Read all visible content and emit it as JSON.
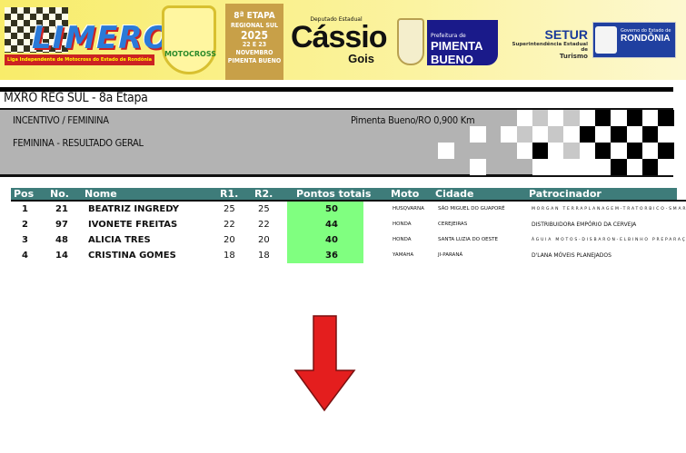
{
  "banner": {
    "limero_logo": "LIMERO",
    "limero_tagline": "Liga Independente de Motocross do Estado de Rondônia",
    "motocross_badge": "MOTOCROSS",
    "etapa_lines": [
      "8ª ETAPA",
      "REGIONAL SUL",
      "2025",
      "22 E 23 NOVEMBRO",
      "PIMENTA BUENO"
    ],
    "deputado_label": "Deputado Estadual",
    "deputado_name": "Cássio",
    "deputado_surname": "Gois",
    "prefeitura_label": "Prefeitura de",
    "prefeitura_name": "PIMENTA BUENO",
    "setur_title": "SETUR",
    "setur_sub": "Superintendência Estadual de",
    "setur_sub2": "Turismo",
    "governo_label": "Governo do Estado de",
    "governo_name": "RONDÔNIA"
  },
  "event_title": "MXRO REG SUL - 8a Etapa",
  "info": {
    "category": "INCENTIVO / FEMININA",
    "location": "Pimenta Bueno/RO 0,900 Km",
    "subtitle": "FEMININA - RESULTADO GERAL"
  },
  "table": {
    "headers": [
      "Pos",
      "No.",
      "Nome",
      "R1.",
      "R2.",
      "Pontos totais",
      "Moto",
      "Cidade",
      "Patrocinador"
    ],
    "rows": [
      {
        "pos": "1",
        "no": "21",
        "nome": "BEATRIZ INGREDY",
        "r1": "25",
        "r2": "25",
        "total": "50",
        "moto": "HUSQVARNA",
        "cidade": "SÃO MIGUEL DO GUAPORÉ",
        "patrocinador": "MORGAN TERRAPLANAGEM-TRATORBICO-SMART GU"
      },
      {
        "pos": "2",
        "no": "97",
        "nome": "IVONETE FREITAS",
        "r1": "22",
        "r2": "22",
        "total": "44",
        "moto": "HONDA",
        "cidade": "CEREJEIRAS",
        "patrocinador": "DISTRIBUIDORA EMPÓRIO DA CERVEJA"
      },
      {
        "pos": "3",
        "no": "48",
        "nome": "ALICIA TRES",
        "r1": "20",
        "r2": "20",
        "total": "40",
        "moto": "HONDA",
        "cidade": "SANTA LUZIA DO OESTE",
        "patrocinador": "ÁGUIA MOTOS-DISBARON-ELBINHO PREPARAÇÕES-"
      },
      {
        "pos": "4",
        "no": "14",
        "nome": "CRISTINA GOMES",
        "r1": "18",
        "r2": "18",
        "total": "36",
        "moto": "YAMAHA",
        "cidade": "JI-PARANÁ",
        "patrocinador": "D'LANA MÓVEIS PLANEJADOS"
      }
    ]
  },
  "colors": {
    "header": "#3e7c7a",
    "total_highlight": "#80ff80",
    "arrow": "#e41e1e"
  },
  "icons": {
    "arrow": "red-down-arrow-icon",
    "flag": "checkered-flag-pattern"
  }
}
